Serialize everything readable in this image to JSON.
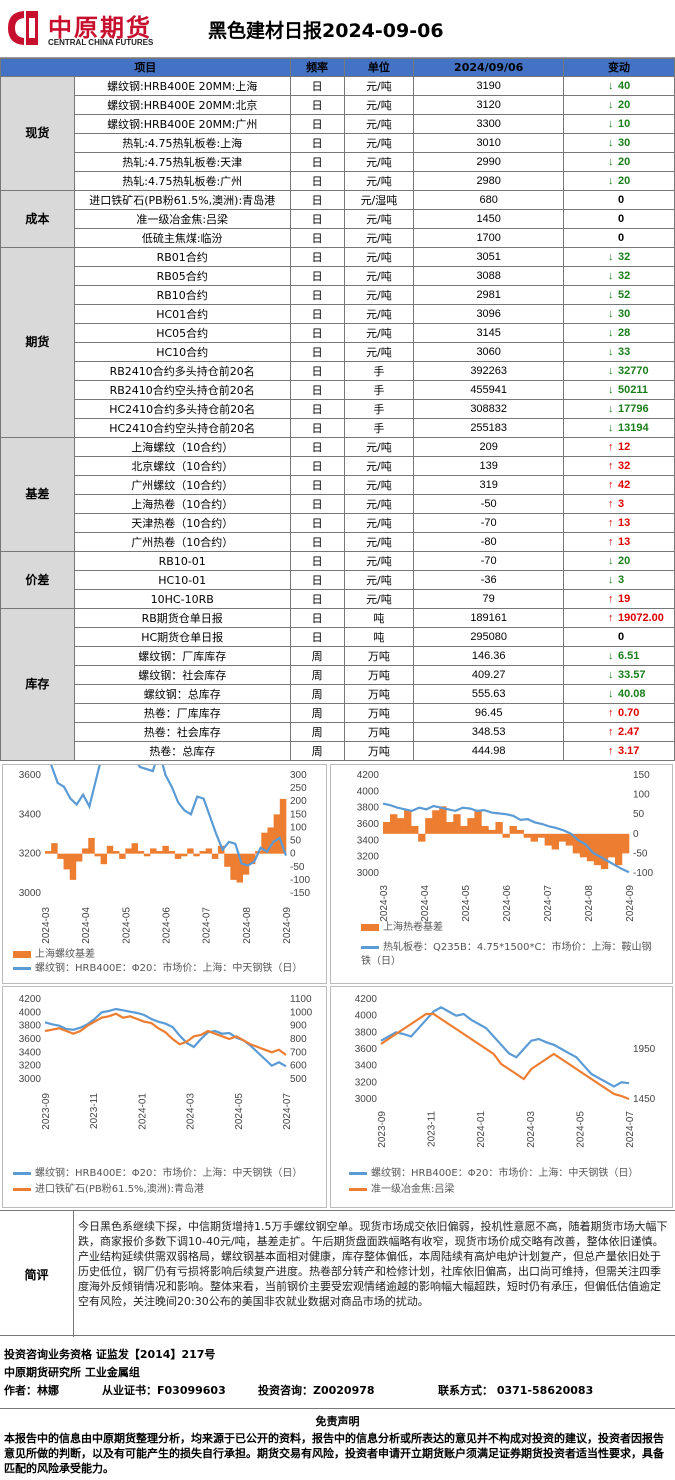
{
  "header": {
    "logo_cn": "中原期货",
    "logo_en": "CENTRAL CHINA FUTURES",
    "title": "黑色建材日报2024-09-06"
  },
  "table": {
    "headers": [
      "项目",
      "频率",
      "单位",
      "2024/09/06",
      "变动"
    ],
    "groups": [
      {
        "category": "现货",
        "rows": [
          {
            "item": "螺纹钢:HRB400E 20MM:上海",
            "freq": "日",
            "unit": "元/吨",
            "value": "3190",
            "dir": "down",
            "change": "40"
          },
          {
            "item": "螺纹钢:HRB400E 20MM:北京",
            "freq": "日",
            "unit": "元/吨",
            "value": "3120",
            "dir": "down",
            "change": "20"
          },
          {
            "item": "螺纹钢:HRB400E 20MM:广州",
            "freq": "日",
            "unit": "元/吨",
            "value": "3300",
            "dir": "down",
            "change": "10"
          },
          {
            "item": "热轧:4.75热轧板卷:上海",
            "freq": "日",
            "unit": "元/吨",
            "value": "3010",
            "dir": "down",
            "change": "30"
          },
          {
            "item": "热轧:4.75热轧板卷:天津",
            "freq": "日",
            "unit": "元/吨",
            "value": "2990",
            "dir": "down",
            "change": "20"
          },
          {
            "item": "热轧:4.75热轧板卷:广州",
            "freq": "日",
            "unit": "元/吨",
            "value": "2980",
            "dir": "down",
            "change": "20"
          }
        ]
      },
      {
        "category": "成本",
        "rows": [
          {
            "item": "进口铁矿石(PB粉61.5%,澳洲):青岛港",
            "freq": "日",
            "unit": "元/湿吨",
            "value": "680",
            "dir": "zero",
            "change": "0"
          },
          {
            "item": "准一级冶金焦:吕梁",
            "freq": "日",
            "unit": "元/吨",
            "value": "1450",
            "dir": "zero",
            "change": "0"
          },
          {
            "item": "低硫主焦煤:临汾",
            "freq": "日",
            "unit": "元/吨",
            "value": "1700",
            "dir": "zero",
            "change": "0"
          }
        ]
      },
      {
        "category": "期货",
        "rows": [
          {
            "item": "RB01合约",
            "freq": "日",
            "unit": "元/吨",
            "value": "3051",
            "dir": "down",
            "change": "32"
          },
          {
            "item": "RB05合约",
            "freq": "日",
            "unit": "元/吨",
            "value": "3088",
            "dir": "down",
            "change": "32"
          },
          {
            "item": "RB10合约",
            "freq": "日",
            "unit": "元/吨",
            "value": "2981",
            "dir": "down",
            "change": "52"
          },
          {
            "item": "HC01合约",
            "freq": "日",
            "unit": "元/吨",
            "value": "3096",
            "dir": "down",
            "change": "30"
          },
          {
            "item": "HC05合约",
            "freq": "日",
            "unit": "元/吨",
            "value": "3145",
            "dir": "down",
            "change": "28"
          },
          {
            "item": "HC10合约",
            "freq": "日",
            "unit": "元/吨",
            "value": "3060",
            "dir": "down",
            "change": "33"
          },
          {
            "item": "RB2410合约多头持仓前20名",
            "freq": "日",
            "unit": "手",
            "value": "392263",
            "dir": "down",
            "change": "32770"
          },
          {
            "item": "RB2410合约空头持仓前20名",
            "freq": "日",
            "unit": "手",
            "value": "455941",
            "dir": "down",
            "change": "50211"
          },
          {
            "item": "HC2410合约多头持仓前20名",
            "freq": "日",
            "unit": "手",
            "value": "308832",
            "dir": "down",
            "change": "17796"
          },
          {
            "item": "HC2410合约空头持仓前20名",
            "freq": "日",
            "unit": "手",
            "value": "255183",
            "dir": "down",
            "change": "13194"
          }
        ]
      },
      {
        "category": "基差",
        "rows": [
          {
            "item": "上海螺纹（10合约）",
            "freq": "日",
            "unit": "元/吨",
            "value": "209",
            "dir": "up",
            "change": "12"
          },
          {
            "item": "北京螺纹（10合约）",
            "freq": "日",
            "unit": "元/吨",
            "value": "139",
            "dir": "up",
            "change": "32"
          },
          {
            "item": "广州螺纹（10合约）",
            "freq": "日",
            "unit": "元/吨",
            "value": "319",
            "dir": "up",
            "change": "42"
          },
          {
            "item": "上海热卷（10合约）",
            "freq": "日",
            "unit": "元/吨",
            "value": "-50",
            "dir": "up",
            "change": "3"
          },
          {
            "item": "天津热卷（10合约）",
            "freq": "日",
            "unit": "元/吨",
            "value": "-70",
            "dir": "up",
            "change": "13"
          },
          {
            "item": "广州热卷（10合约）",
            "freq": "日",
            "unit": "元/吨",
            "value": "-80",
            "dir": "up",
            "change": "13"
          }
        ]
      },
      {
        "category": "价差",
        "rows": [
          {
            "item": "RB10-01",
            "freq": "日",
            "unit": "元/吨",
            "value": "-70",
            "dir": "down",
            "change": "20"
          },
          {
            "item": "HC10-01",
            "freq": "日",
            "unit": "元/吨",
            "value": "-36",
            "dir": "down",
            "change": "3"
          },
          {
            "item": "10HC-10RB",
            "freq": "日",
            "unit": "元/吨",
            "value": "79",
            "dir": "up",
            "change": "19"
          }
        ]
      },
      {
        "category": "库存",
        "rows": [
          {
            "item": "RB期货仓单日报",
            "freq": "日",
            "unit": "吨",
            "value": "189161",
            "dir": "up",
            "change": "19072.00"
          },
          {
            "item": "HC期货仓单日报",
            "freq": "日",
            "unit": "吨",
            "value": "295080",
            "dir": "zero",
            "change": "0"
          },
          {
            "item": "螺纹钢：厂库库存",
            "freq": "周",
            "unit": "万吨",
            "value": "146.36",
            "dir": "down",
            "change": "6.51"
          },
          {
            "item": "螺纹钢：社会库存",
            "freq": "周",
            "unit": "万吨",
            "value": "409.27",
            "dir": "down",
            "change": "33.57"
          },
          {
            "item": "螺纹钢：总库存",
            "freq": "周",
            "unit": "万吨",
            "value": "555.63",
            "dir": "down",
            "change": "40.08"
          },
          {
            "item": "热卷：厂库库存",
            "freq": "周",
            "unit": "万吨",
            "value": "96.45",
            "dir": "up",
            "change": "0.70"
          },
          {
            "item": "热卷：社会库存",
            "freq": "周",
            "unit": "万吨",
            "value": "348.53",
            "dir": "up",
            "change": "2.47"
          },
          {
            "item": "热卷：总库存",
            "freq": "周",
            "unit": "万吨",
            "value": "444.98",
            "dir": "up",
            "change": "3.17"
          }
        ]
      }
    ]
  },
  "chart_data": [
    {
      "type": "area",
      "ylim_left": [
        3000,
        3600
      ],
      "yticks_left": [
        "3600",
        "3400",
        "3200",
        "3000"
      ],
      "ylim_right": [
        -150,
        300
      ],
      "yticks_right": [
        "300",
        "250",
        "200",
        "150",
        "100",
        "50",
        "0",
        "-50",
        "-100",
        "-150"
      ],
      "x_ticks": [
        "2024-03",
        "2024-04",
        "2024-05",
        "2024-06",
        "2024-07",
        "2024-08",
        "2024-09"
      ],
      "series": [
        {
          "name": "上海螺纹基差",
          "kind": "bar",
          "axis": "right",
          "color": "#ed7d31",
          "values": [
            10,
            40,
            -20,
            -60,
            -100,
            -30,
            20,
            60,
            -10,
            -40,
            30,
            10,
            -20,
            20,
            40,
            10,
            -10,
            20,
            10,
            30,
            10,
            -20,
            -10,
            20,
            -10,
            10,
            20,
            -20,
            30,
            -50,
            -100,
            -110,
            -80,
            -40,
            10,
            80,
            100,
            150,
            209
          ]
        },
        {
          "name": "螺纹钢：HRB400E：Φ20：市场价：上海：中天钢铁（日）",
          "kind": "line",
          "axis": "left",
          "color": "#5b9bd5",
          "values": [
            3730,
            3650,
            3560,
            3540,
            3480,
            3450,
            3500,
            3440,
            3570,
            3700,
            3730,
            3740,
            3690,
            3660,
            3690,
            3640,
            3630,
            3620,
            3720,
            3600,
            3540,
            3460,
            3420,
            3400,
            3490,
            3480,
            3390,
            3300,
            3220,
            3260,
            3250,
            3150,
            3140,
            3160,
            3230,
            3210,
            3260,
            3280,
            3190
          ]
        }
      ]
    },
    {
      "type": "area",
      "ylim_left": [
        3000,
        4200
      ],
      "yticks_left": [
        "4200",
        "4000",
        "3800",
        "3600",
        "3400",
        "3200",
        "3000"
      ],
      "ylim_right": [
        -100,
        150
      ],
      "yticks_right": [
        "150",
        "100",
        "50",
        "0",
        "-50",
        "-100"
      ],
      "x_ticks": [
        "2024-03",
        "2024-04",
        "2024-05",
        "2024-06",
        "2024-07",
        "2024-08",
        "2024-09"
      ],
      "series": [
        {
          "name": "上海热卷基差",
          "kind": "bar",
          "axis": "right",
          "color": "#ed7d31",
          "values": [
            30,
            50,
            40,
            60,
            20,
            -20,
            40,
            60,
            70,
            30,
            50,
            20,
            40,
            60,
            20,
            10,
            30,
            -10,
            20,
            10,
            -10,
            -20,
            -10,
            -30,
            -40,
            -20,
            -30,
            -50,
            -60,
            -70,
            -80,
            -90,
            -60,
            -80,
            -50
          ]
        },
        {
          "name": "热轧板卷：Q235B：4.75*1500*C：市场价：上海：鞍山钢铁（日）",
          "kind": "line",
          "axis": "left",
          "color": "#5b9bd5",
          "values": [
            3850,
            3830,
            3800,
            3780,
            3760,
            3800,
            3780,
            3820,
            3800,
            3780,
            3760,
            3800,
            3790,
            3760,
            3770,
            3740,
            3730,
            3720,
            3700,
            3650,
            3660,
            3620,
            3600,
            3570,
            3550,
            3520,
            3480,
            3400,
            3350,
            3250,
            3200,
            3150,
            3100,
            3050,
            3010
          ]
        }
      ]
    },
    {
      "type": "line",
      "ylim_left": [
        3000,
        4200
      ],
      "yticks_left": [
        "4200",
        "4000",
        "3800",
        "3600",
        "3400",
        "3200",
        "3000"
      ],
      "ylim_right": [
        500,
        1100
      ],
      "yticks_right": [
        "1100",
        "1000",
        "900",
        "800",
        "700",
        "600",
        "500"
      ],
      "x_ticks": [
        "2023-09",
        "2023-11",
        "2024-01",
        "2024-03",
        "2024-05",
        "2024-07"
      ],
      "series": [
        {
          "name": "螺纹钢：HRB400E：Φ20：市场价：上海：中天钢铁（日）",
          "kind": "line",
          "axis": "left",
          "color": "#5b9bd5",
          "values": [
            3850,
            3820,
            3800,
            3750,
            3740,
            3770,
            3820,
            3900,
            4000,
            4020,
            4050,
            4030,
            4010,
            3990,
            3960,
            3900,
            3860,
            3830,
            3780,
            3650,
            3540,
            3480,
            3600,
            3700,
            3720,
            3680,
            3690,
            3620,
            3580,
            3500,
            3400,
            3300,
            3200,
            3250,
            3190
          ]
        },
        {
          "name": "进口铁矿石(PB粉61.5%,澳洲):青岛港",
          "kind": "line",
          "axis": "right",
          "color": "#ed7d31",
          "values": [
            860,
            870,
            880,
            860,
            840,
            860,
            900,
            930,
            960,
            970,
            990,
            960,
            970,
            950,
            930,
            920,
            880,
            850,
            800,
            760,
            780,
            820,
            830,
            860,
            840,
            820,
            800,
            820,
            790,
            760,
            740,
            720,
            700,
            720,
            680
          ]
        }
      ]
    },
    {
      "type": "line",
      "ylim_left": [
        3000,
        4200
      ],
      "yticks_left": [
        "4200",
        "4000",
        "3800",
        "3600",
        "3400",
        "3200",
        "3000"
      ],
      "ylim_right": [
        1450,
        2450
      ],
      "yticks_right": [
        "1950",
        "1450"
      ],
      "x_ticks": [
        "2023-09",
        "2023-11",
        "2024-01",
        "2024-03",
        "2024-05",
        "2024-07"
      ],
      "series": [
        {
          "name": "螺纹钢：HRB400E：Φ20：市场价：上海：中天钢铁（日）",
          "kind": "line",
          "axis": "left",
          "color": "#5b9bd5",
          "values": [
            3700,
            3750,
            3800,
            3780,
            3750,
            3850,
            3950,
            4050,
            4100,
            4050,
            4000,
            4020,
            3950,
            3900,
            3850,
            3750,
            3650,
            3550,
            3500,
            3600,
            3700,
            3720,
            3680,
            3650,
            3600,
            3550,
            3500,
            3400,
            3300,
            3250,
            3200,
            3150,
            3200,
            3190
          ]
        },
        {
          "name": "准一级冶金焦:吕梁",
          "kind": "line",
          "axis": "right",
          "color": "#ed7d31",
          "values": [
            2000,
            2050,
            2100,
            2150,
            2200,
            2250,
            2300,
            2300,
            2250,
            2200,
            2150,
            2100,
            2050,
            2000,
            1950,
            1900,
            1800,
            1750,
            1700,
            1650,
            1750,
            1800,
            1850,
            1900,
            1850,
            1800,
            1750,
            1700,
            1650,
            1600,
            1550,
            1500,
            1480,
            1450
          ]
        }
      ]
    }
  ],
  "commentary": {
    "label": "简评",
    "text": "今日黑色系继续下探，中信期货增持1.5万手螺纹钢空单。现货市场成交依旧偏弱，投机性意愿不高，随着期货市场大幅下跌，商家报价多数下调10-40元/吨，基差走扩。午后期货盘面跌幅略有收窄，现货市场价成交略有改善，整体依旧谨慎。产业结构延续供需双弱格局，螺纹钢基本面相对健康，库存整体偏低，本周陆续有高炉电炉计划复产，但总产量依旧处于历史低位，钢厂仍有亏损将影响后续复产进度。热卷部分转产和检修计划，社库依旧偏高，出口尚可维持，但需关注四季度海外反倾销情况和影响。整体来看，当前钢价主要受宏观情绪逾越的影响幅大幅超跌，短时仍有承压，但偏低估值逾定空有风险，关注晚间20:30公布的美国非农就业数据对商品市场的扰动。"
  },
  "footer": {
    "line1": "投资咨询业务资格   证监发【2014】217号",
    "line2": "中原期货研究所   工业金属组",
    "author": "作者：林娜",
    "cert": "从业证书：F03099603",
    "consult": "投资咨询：Z0020978",
    "contact": "联系方式：  0371-58620083"
  },
  "disclaimer": {
    "title": "免责声明",
    "body": "本报告中的信息由中原期货整理分析，均来源于已公开的资料，报告中的信息分析或所表达的意见并不构成对投资的建议，投资者因报告意见所做的判断，以及有可能产生的损失自行承担。期货交易有风险，投资者申请开立期货账户须满足证券期货投资者适当性要求，具备匹配的风险承受能力。"
  },
  "colors": {
    "header_bg": "#4472c4",
    "category_bg": "#d9d9d9",
    "down": "#1a7f1a",
    "up": "#e00000",
    "bar": "#ed7d31",
    "line_blue": "#5b9bd5"
  }
}
